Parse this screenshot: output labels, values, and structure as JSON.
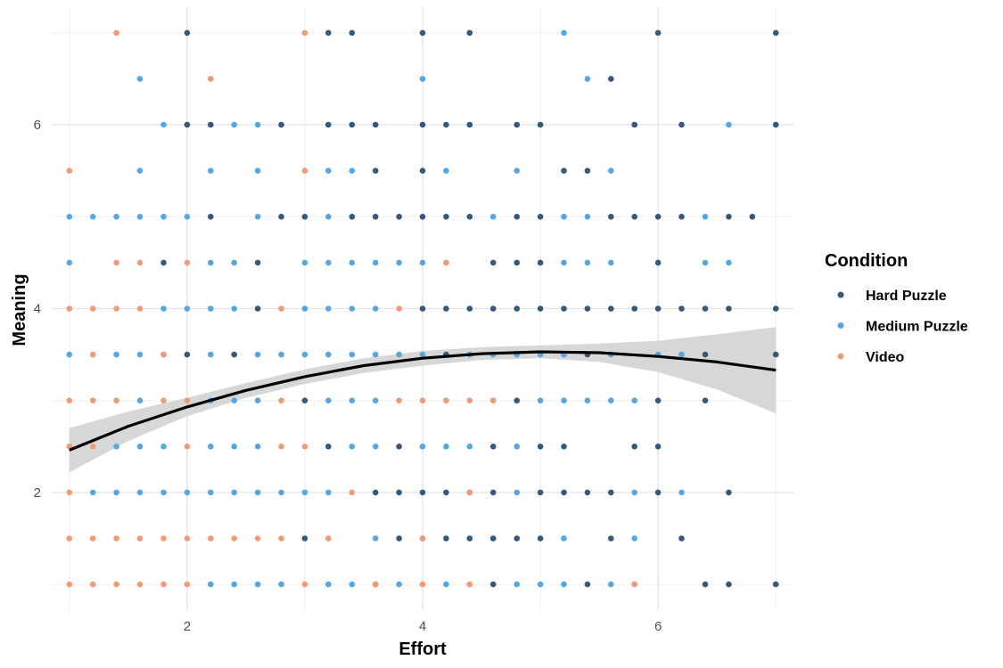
{
  "chart_data": {
    "type": "scatter",
    "xlabel": "Effort",
    "ylabel": "Meaning",
    "xlim": [
      0.85,
      7.15
    ],
    "ylim": [
      0.72,
      7.28
    ],
    "x_ticks": [
      2,
      4,
      6
    ],
    "y_ticks": [
      2,
      4,
      6
    ],
    "x_minor_ticks": [
      1,
      3,
      5,
      7
    ],
    "y_minor_ticks": [
      1,
      3,
      5,
      7
    ],
    "grid": true,
    "legend": {
      "title": "Condition",
      "position": "right",
      "entries": [
        "Hard Puzzle",
        "Medium Puzzle",
        "Video"
      ]
    },
    "series": [
      {
        "name": "Hard Puzzle",
        "color": "#34597a",
        "points": [
          [
            2,
            7
          ],
          [
            3.2,
            7
          ],
          [
            3.4,
            7
          ],
          [
            4,
            7
          ],
          [
            4.4,
            7
          ],
          [
            6,
            7
          ],
          [
            7,
            7
          ],
          [
            5.6,
            6.5
          ],
          [
            2,
            6
          ],
          [
            2.2,
            6
          ],
          [
            2.8,
            6
          ],
          [
            3.2,
            6
          ],
          [
            3.4,
            6
          ],
          [
            3.6,
            6
          ],
          [
            4,
            6
          ],
          [
            4.2,
            6
          ],
          [
            4.4,
            6
          ],
          [
            4.8,
            6
          ],
          [
            5,
            6
          ],
          [
            5.8,
            6
          ],
          [
            6.2,
            6
          ],
          [
            7,
            6
          ],
          [
            3.6,
            5.5
          ],
          [
            4,
            5.5
          ],
          [
            5.2,
            5.5
          ],
          [
            5.4,
            5.5
          ],
          [
            2.2,
            5
          ],
          [
            2.8,
            5
          ],
          [
            3,
            5
          ],
          [
            3.4,
            5
          ],
          [
            3.6,
            5
          ],
          [
            3.8,
            5
          ],
          [
            4,
            5
          ],
          [
            4.2,
            5
          ],
          [
            4.4,
            5
          ],
          [
            4.8,
            5
          ],
          [
            5,
            5
          ],
          [
            5.6,
            5
          ],
          [
            5.8,
            5
          ],
          [
            6,
            5
          ],
          [
            6.2,
            5
          ],
          [
            6.6,
            5
          ],
          [
            6.8,
            5
          ],
          [
            1.8,
            4.5
          ],
          [
            2.6,
            4.5
          ],
          [
            4.6,
            4.5
          ],
          [
            4.8,
            4.5
          ],
          [
            5,
            4.5
          ],
          [
            6,
            4.5
          ],
          [
            2.6,
            4
          ],
          [
            4,
            4
          ],
          [
            4.2,
            4
          ],
          [
            4.4,
            4
          ],
          [
            4.6,
            4
          ],
          [
            4.8,
            4
          ],
          [
            5,
            4
          ],
          [
            5.2,
            4
          ],
          [
            5.4,
            4
          ],
          [
            5.6,
            4
          ],
          [
            5.8,
            4
          ],
          [
            6,
            4
          ],
          [
            6.2,
            4
          ],
          [
            6.4,
            4
          ],
          [
            6.6,
            4
          ],
          [
            7,
            4
          ],
          [
            2,
            3.5
          ],
          [
            2.4,
            3.5
          ],
          [
            4.2,
            3.5
          ],
          [
            5.4,
            3.5
          ],
          [
            6.4,
            3.5
          ],
          [
            7,
            3.5
          ],
          [
            3,
            3
          ],
          [
            4.8,
            3
          ],
          [
            6,
            3
          ],
          [
            6.4,
            3
          ],
          [
            3.2,
            2.5
          ],
          [
            3.8,
            2.5
          ],
          [
            4.6,
            2.5
          ],
          [
            5,
            2.5
          ],
          [
            5.2,
            2.5
          ],
          [
            5.8,
            2.5
          ],
          [
            6,
            2.5
          ],
          [
            3.6,
            2
          ],
          [
            3.8,
            2
          ],
          [
            4,
            2
          ],
          [
            4.2,
            2
          ],
          [
            4.4,
            2
          ],
          [
            4.6,
            2
          ],
          [
            5,
            2
          ],
          [
            5.2,
            2
          ],
          [
            5.4,
            2
          ],
          [
            5.6,
            2
          ],
          [
            6,
            2
          ],
          [
            6.6,
            2
          ],
          [
            3,
            1.5
          ],
          [
            3.8,
            1.5
          ],
          [
            4.2,
            1.5
          ],
          [
            4.4,
            1.5
          ],
          [
            4.6,
            1.5
          ],
          [
            4.8,
            1.5
          ],
          [
            5,
            1.5
          ],
          [
            5.6,
            1.5
          ],
          [
            6.2,
            1.5
          ],
          [
            3.6,
            1
          ],
          [
            4.6,
            1
          ],
          [
            5.4,
            1
          ],
          [
            6.4,
            1
          ],
          [
            6.6,
            1
          ],
          [
            7,
            1
          ]
        ]
      },
      {
        "name": "Medium Puzzle",
        "color": "#56a6e0",
        "points": [
          [
            5.2,
            7
          ],
          [
            1.6,
            6.5
          ],
          [
            4,
            6.5
          ],
          [
            5.4,
            6.5
          ],
          [
            1.8,
            6
          ],
          [
            2.4,
            6
          ],
          [
            2.6,
            6
          ],
          [
            6.6,
            6
          ],
          [
            1.6,
            5.5
          ],
          [
            2.2,
            5.5
          ],
          [
            2.6,
            5.5
          ],
          [
            3.2,
            5.5
          ],
          [
            3.4,
            5.5
          ],
          [
            4.2,
            5.5
          ],
          [
            4.8,
            5.5
          ],
          [
            5.6,
            5.5
          ],
          [
            1,
            5
          ],
          [
            1.2,
            5
          ],
          [
            1.4,
            5
          ],
          [
            1.6,
            5
          ],
          [
            1.8,
            5
          ],
          [
            2,
            5
          ],
          [
            2.6,
            5
          ],
          [
            3.2,
            5
          ],
          [
            4.6,
            5
          ],
          [
            5.2,
            5
          ],
          [
            5.4,
            5
          ],
          [
            6.4,
            5
          ],
          [
            1,
            4.5
          ],
          [
            2.2,
            4.5
          ],
          [
            2.4,
            4.5
          ],
          [
            3,
            4.5
          ],
          [
            3.2,
            4.5
          ],
          [
            3.4,
            4.5
          ],
          [
            3.6,
            4.5
          ],
          [
            3.8,
            4.5
          ],
          [
            4,
            4.5
          ],
          [
            4.2,
            4.5
          ],
          [
            5.2,
            4.5
          ],
          [
            5.4,
            4.5
          ],
          [
            5.6,
            4.5
          ],
          [
            6.4,
            4.5
          ],
          [
            6.6,
            4.5
          ],
          [
            1.8,
            4
          ],
          [
            2,
            4
          ],
          [
            2.2,
            4
          ],
          [
            2.4,
            4
          ],
          [
            3,
            4
          ],
          [
            3.2,
            4
          ],
          [
            3.4,
            4
          ],
          [
            3.6,
            4
          ],
          [
            1,
            3.5
          ],
          [
            1.4,
            3.5
          ],
          [
            1.6,
            3.5
          ],
          [
            1.8,
            3.5
          ],
          [
            2.2,
            3.5
          ],
          [
            2.6,
            3.5
          ],
          [
            2.8,
            3.5
          ],
          [
            3,
            3.5
          ],
          [
            3.2,
            3.5
          ],
          [
            3.4,
            3.5
          ],
          [
            3.6,
            3.5
          ],
          [
            3.8,
            3.5
          ],
          [
            4,
            3.5
          ],
          [
            4.4,
            3.5
          ],
          [
            4.6,
            3.5
          ],
          [
            4.8,
            3.5
          ],
          [
            5,
            3.5
          ],
          [
            5.2,
            3.5
          ],
          [
            5.6,
            3.5
          ],
          [
            6,
            3.5
          ],
          [
            6.2,
            3.5
          ],
          [
            1.6,
            3
          ],
          [
            2.2,
            3
          ],
          [
            2.4,
            3
          ],
          [
            2.6,
            3
          ],
          [
            3.2,
            3
          ],
          [
            3.4,
            3
          ],
          [
            3.6,
            3
          ],
          [
            4.6,
            3
          ],
          [
            5,
            3
          ],
          [
            5.2,
            3
          ],
          [
            5.4,
            3
          ],
          [
            5.6,
            3
          ],
          [
            5.8,
            3
          ],
          [
            1.4,
            2.5
          ],
          [
            1.6,
            2.5
          ],
          [
            1.8,
            2.5
          ],
          [
            2.2,
            2.5
          ],
          [
            2.4,
            2.5
          ],
          [
            2.6,
            2.5
          ],
          [
            3.4,
            2.5
          ],
          [
            3.6,
            2.5
          ],
          [
            4,
            2.5
          ],
          [
            4.2,
            2.5
          ],
          [
            4.4,
            2.5
          ],
          [
            4.8,
            2.5
          ],
          [
            1.2,
            2
          ],
          [
            1.4,
            2
          ],
          [
            1.6,
            2
          ],
          [
            1.8,
            2
          ],
          [
            2,
            2
          ],
          [
            2.2,
            2
          ],
          [
            2.4,
            2
          ],
          [
            2.6,
            2
          ],
          [
            2.8,
            2
          ],
          [
            3,
            2
          ],
          [
            3.2,
            2
          ],
          [
            4.8,
            2
          ],
          [
            5.8,
            2
          ],
          [
            6.2,
            2
          ],
          [
            3.6,
            1.5
          ],
          [
            4,
            1.5
          ],
          [
            5.2,
            1.5
          ],
          [
            5.8,
            1.5
          ],
          [
            2.2,
            1
          ],
          [
            2.4,
            1
          ],
          [
            2.6,
            1
          ],
          [
            2.8,
            1
          ],
          [
            3.2,
            1
          ],
          [
            3.4,
            1
          ],
          [
            3.8,
            1
          ],
          [
            4.2,
            1
          ],
          [
            4.4,
            1
          ],
          [
            4.8,
            1
          ],
          [
            5,
            1
          ],
          [
            5.2,
            1
          ],
          [
            5.6,
            1
          ]
        ]
      },
      {
        "name": "Video",
        "color": "#f19a77",
        "points": [
          [
            1.4,
            7
          ],
          [
            3,
            7
          ],
          [
            2.2,
            6.5
          ],
          [
            1,
            5.5
          ],
          [
            3,
            5.5
          ],
          [
            1.4,
            4.5
          ],
          [
            1.6,
            4.5
          ],
          [
            2,
            4.5
          ],
          [
            4.2,
            4.5
          ],
          [
            1,
            4
          ],
          [
            1.2,
            4
          ],
          [
            1.4,
            4
          ],
          [
            1.6,
            4
          ],
          [
            2.8,
            4
          ],
          [
            3.8,
            4
          ],
          [
            1.2,
            3.5
          ],
          [
            1.8,
            3.5
          ],
          [
            1,
            3
          ],
          [
            1.2,
            3
          ],
          [
            1.4,
            3
          ],
          [
            1.8,
            3
          ],
          [
            2,
            3
          ],
          [
            2.8,
            3
          ],
          [
            3.8,
            3
          ],
          [
            4,
            3
          ],
          [
            4.2,
            3
          ],
          [
            4.4,
            3
          ],
          [
            4.6,
            3
          ],
          [
            1,
            2.5
          ],
          [
            1.2,
            2.5
          ],
          [
            2,
            2.5
          ],
          [
            2.8,
            2.5
          ],
          [
            3,
            2.5
          ],
          [
            1,
            2
          ],
          [
            3.4,
            2
          ],
          [
            4.4,
            2
          ],
          [
            1,
            1.5
          ],
          [
            1.2,
            1.5
          ],
          [
            1.4,
            1.5
          ],
          [
            1.6,
            1.5
          ],
          [
            1.8,
            1.5
          ],
          [
            2,
            1.5
          ],
          [
            2.2,
            1.5
          ],
          [
            2.4,
            1.5
          ],
          [
            2.6,
            1.5
          ],
          [
            2.8,
            1.5
          ],
          [
            3.2,
            1.5
          ],
          [
            4,
            1.5
          ],
          [
            1,
            1
          ],
          [
            1.2,
            1
          ],
          [
            1.4,
            1
          ],
          [
            1.6,
            1
          ],
          [
            1.8,
            1
          ],
          [
            2,
            1
          ],
          [
            3,
            1
          ],
          [
            3.6,
            1
          ],
          [
            4,
            1
          ],
          [
            4.4,
            1
          ],
          [
            5.8,
            1
          ]
        ]
      }
    ],
    "smooth": {
      "color": "#000000",
      "band_color": "#d3d3d3",
      "x": [
        1,
        1.5,
        2,
        2.5,
        3,
        3.5,
        4,
        4.5,
        5,
        5.5,
        6,
        6.5,
        7
      ],
      "y": [
        2.46,
        2.72,
        2.93,
        3.11,
        3.26,
        3.38,
        3.46,
        3.51,
        3.53,
        3.52,
        3.48,
        3.42,
        3.33
      ],
      "lower": [
        2.22,
        2.56,
        2.83,
        3.03,
        3.18,
        3.3,
        3.38,
        3.44,
        3.46,
        3.42,
        3.31,
        3.12,
        2.86
      ],
      "upper": [
        2.7,
        2.88,
        3.03,
        3.19,
        3.34,
        3.46,
        3.54,
        3.58,
        3.6,
        3.62,
        3.65,
        3.72,
        3.8
      ]
    }
  }
}
